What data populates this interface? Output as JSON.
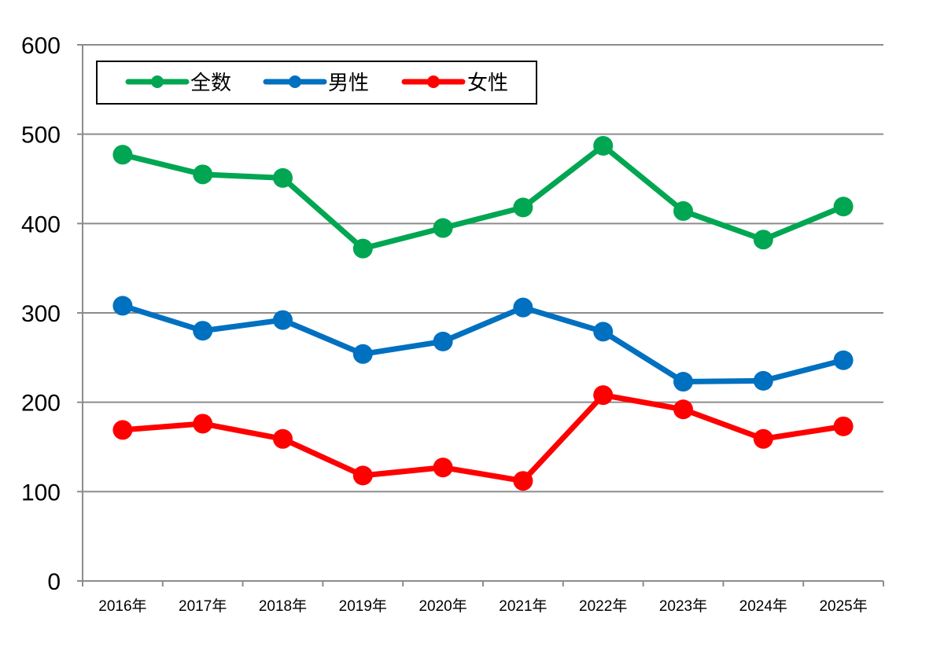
{
  "chart_data": {
    "type": "line",
    "title": "",
    "xlabel": "",
    "ylabel": "",
    "categories": [
      "2016年",
      "2017年",
      "2018年",
      "2019年",
      "2020年",
      "2021年",
      "2022年",
      "2023年",
      "2024年",
      "2025年"
    ],
    "y_ticks": [
      "0",
      "100",
      "200",
      "300",
      "400",
      "500",
      "600"
    ],
    "ylim": [
      0,
      600
    ],
    "grid": true,
    "legend_position": "top-left",
    "series": [
      {
        "name": "全数",
        "color": "#00a651",
        "values": [
          477,
          455,
          451,
          372,
          395,
          418,
          487,
          414,
          382,
          419
        ]
      },
      {
        "name": "男性",
        "color": "#0070c0",
        "values": [
          308,
          280,
          292,
          254,
          268,
          306,
          279,
          223,
          224,
          247
        ]
      },
      {
        "name": "女性",
        "color": "#ff0000",
        "values": [
          169,
          176,
          159,
          118,
          127,
          112,
          208,
          192,
          159,
          173
        ]
      }
    ]
  }
}
